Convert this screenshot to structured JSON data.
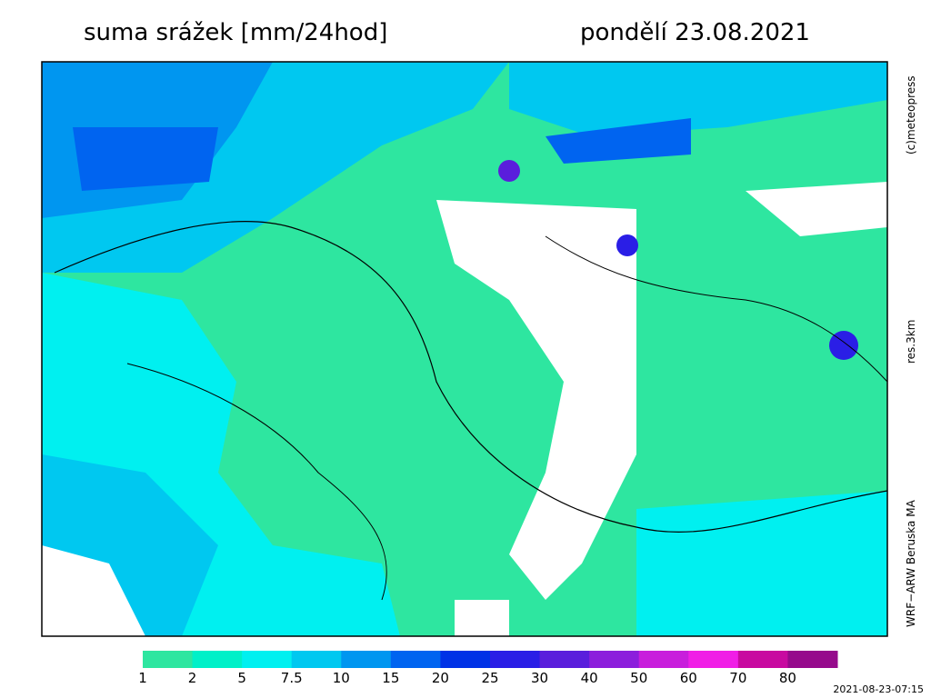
{
  "header": {
    "title": "suma srážek [mm/24hod]",
    "date": "pondělí 23.08.2021"
  },
  "side_labels": [
    "(c)meteopress",
    "res.3km",
    "WRF−ARW Beruska MA"
  ],
  "legend": {
    "ticks": [
      1,
      2,
      5,
      7.5,
      10,
      15,
      20,
      25,
      30,
      40,
      50,
      60,
      70,
      80
    ],
    "colors": [
      "#2ee6a0",
      "#00f0c8",
      "#00f0f0",
      "#00c8f0",
      "#0096f0",
      "#0064f0",
      "#0032e6",
      "#2a1ee6",
      "#5a1edc",
      "#8c1edc",
      "#c81edc",
      "#f01ee6",
      "#c80aa0",
      "#960a8c"
    ]
  },
  "timestamp": "2021-08-23-07:15"
}
